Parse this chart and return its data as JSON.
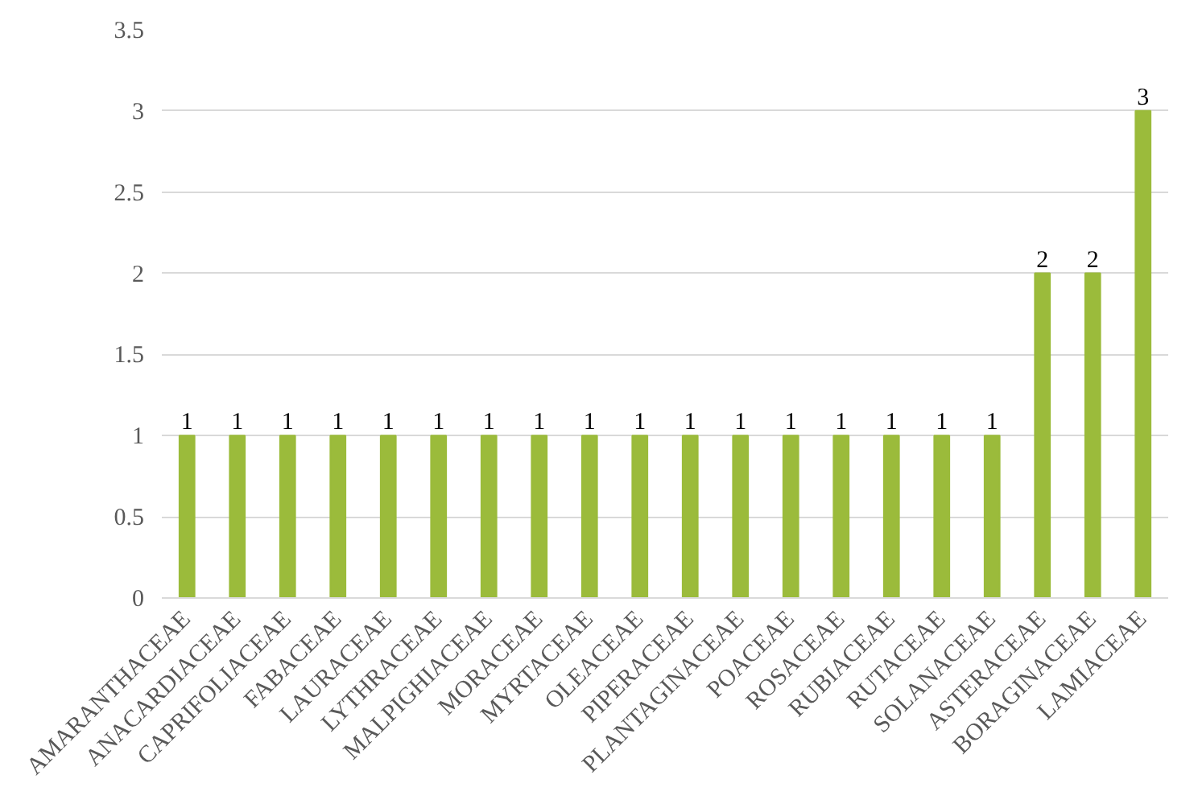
{
  "chart_data": {
    "type": "bar",
    "categories": [
      "AMARANTHACEAE",
      "ANACARDIACEAE",
      "CAPRIFOLIACEAE",
      "FABACEAE",
      "LAURACEAE",
      "LYTHRACEAE",
      "MALPIGHIACEAE",
      "MORACEAE",
      "MYRTACEAE",
      "OLEACEAE",
      "PIPERACEAE",
      "PLANTAGINACEAE",
      "POACEAE",
      "ROSACEAE",
      "RUBIACEAE",
      "RUTACEAE",
      "SOLANACEAE",
      "ASTERACEAE",
      "BORAGINACEAE",
      "LAMIACEAE"
    ],
    "values": [
      1,
      1,
      1,
      1,
      1,
      1,
      1,
      1,
      1,
      1,
      1,
      1,
      1,
      1,
      1,
      1,
      1,
      2,
      2,
      3
    ],
    "color": "#9bbb3b",
    "ylim": [
      0,
      3.5
    ],
    "yticks": [
      0,
      0.5,
      1,
      1.5,
      2,
      2.5,
      3,
      3.5
    ],
    "grid": "y",
    "data_labels": true
  }
}
